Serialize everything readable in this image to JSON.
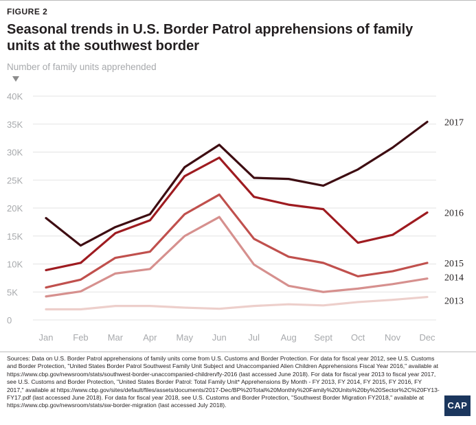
{
  "figure_label": "FIGURE 2",
  "title": "Seasonal trends in U.S. Border Patrol apprehensions of family units at the southwest border",
  "source_note": "Sources: Data on U.S. Border Patrol apprehensions of family units come from U.S. Customs and Border Protection. For data for fiscal year 2012, see U.S. Customs and Border Protection, \"United States Border Patrol Southwest Family Unit Subject and Unaccompanied Alien Children Apprehensions Fiscal Year 2016,\" available at https://www.cbp.gov/newsroom/stats/southwest-border-unaccompanied-children/fy-2016 (last accessed June 2018). For data for fiscal year 2013 to fiscal year 2017, see U.S. Customs and Border Protection, \"United States Border Patrol: Total Family Unit* Apprehensions By Month - FY 2013, FY 2014, FY 2015, FY 2016, FY 2017,\" available at https://www.cbp.gov/sites/default/files/assets/documents/2017-Dec/BP%20Total%20Monthly%20Family%20Units%20by%20Sector%2C%20FY13-FY17.pdf (last accessed June 2018). For data for fiscal year 2018, see U.S. Customs and Border Protection, \"Southwest Border Migration FY2018,\" available at https://www.cbp.gov/newsroom/stats/sw-border-migration (last accessed July 2018).",
  "logo_text": "CAP",
  "chart_data": {
    "type": "line",
    "title": "Seasonal trends in U.S. Border Patrol apprehensions of family units at the southwest border",
    "xlabel": "",
    "ylabel": "Number of family units apprehended",
    "categories": [
      "Jan",
      "Feb",
      "Mar",
      "Apr",
      "May",
      "Jun",
      "Jul",
      "Aug",
      "Sept",
      "Oct",
      "Nov",
      "Dec"
    ],
    "yticks": [
      "0",
      "5K",
      "10K",
      "15K",
      "20K",
      "25K",
      "30K",
      "35K",
      "40K"
    ],
    "ylim": [
      0,
      40000
    ],
    "grid": true,
    "legend": "direct labels at right end of each line",
    "series": [
      {
        "name": "2013",
        "color": "#edcfcb",
        "values": [
          1900,
          1900,
          2500,
          2500,
          2200,
          2000,
          2500,
          2800,
          2600,
          3200,
          3600,
          4100
        ]
      },
      {
        "name": "2014",
        "color": "#d6908e",
        "values": [
          4200,
          5100,
          8300,
          9100,
          15000,
          18400,
          9900,
          6100,
          5000,
          5600,
          6400,
          7400
        ]
      },
      {
        "name": "2015",
        "color": "#c0504d",
        "values": [
          5800,
          7200,
          11100,
          12200,
          18900,
          22400,
          14500,
          11300,
          10200,
          7800,
          8700,
          10200
        ]
      },
      {
        "name": "2016",
        "color": "#9e1b20",
        "values": [
          8900,
          10200,
          15500,
          17800,
          25700,
          29000,
          22000,
          20600,
          19800,
          13800,
          15200,
          19200
        ]
      },
      {
        "name": "2017",
        "color": "#3e0d12",
        "values": [
          18200,
          13300,
          16600,
          18900,
          27300,
          31300,
          25400,
          25200,
          24000,
          26900,
          30800,
          35400
        ]
      }
    ]
  }
}
